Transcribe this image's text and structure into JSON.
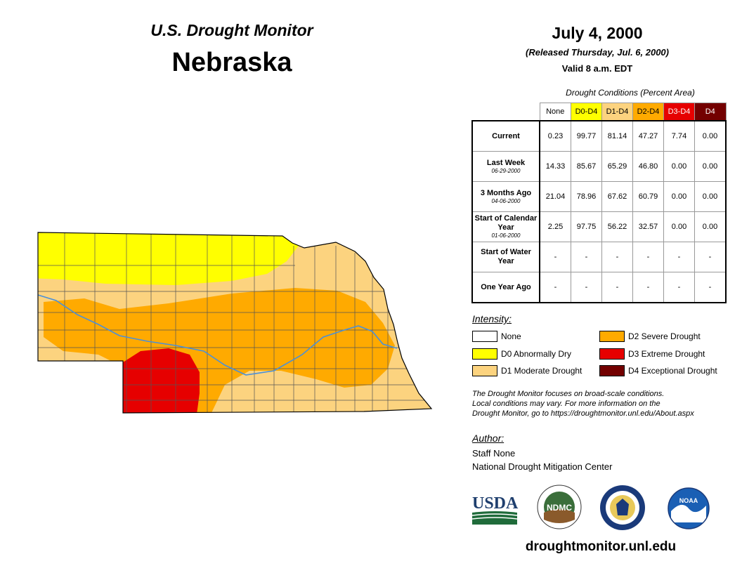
{
  "header": {
    "subtitle": "U.S. Drought Monitor",
    "state": "Nebraska",
    "date": "July 4, 2000",
    "released": "(Released Thursday, Jul. 6, 2000)",
    "valid": "Valid 8 a.m. EDT"
  },
  "table": {
    "caption": "Drought Conditions (Percent Area)",
    "columns": [
      {
        "label": "None",
        "color": "#ffffff",
        "text_color": "#000000"
      },
      {
        "label": "D0-D4",
        "color": "#ffff00",
        "text_color": "#000000"
      },
      {
        "label": "D1-D4",
        "color": "#fcd37f",
        "text_color": "#000000"
      },
      {
        "label": "D2-D4",
        "color": "#ffaa00",
        "text_color": "#000000"
      },
      {
        "label": "D3-D4",
        "color": "#e60000",
        "text_color": "#ffffff"
      },
      {
        "label": "D4",
        "color": "#730000",
        "text_color": "#ffffff"
      }
    ],
    "rows": [
      {
        "label": "Current",
        "date": "",
        "values": [
          "0.23",
          "99.77",
          "81.14",
          "47.27",
          "7.74",
          "0.00"
        ]
      },
      {
        "label": "Last Week",
        "date": "06-29-2000",
        "values": [
          "14.33",
          "85.67",
          "65.29",
          "46.80",
          "0.00",
          "0.00"
        ]
      },
      {
        "label": "3 Months Ago",
        "date": "04-06-2000",
        "values": [
          "21.04",
          "78.96",
          "67.62",
          "60.79",
          "0.00",
          "0.00"
        ]
      },
      {
        "label": "Start of Calendar Year",
        "date": "01-06-2000",
        "values": [
          "2.25",
          "97.75",
          "56.22",
          "32.57",
          "0.00",
          "0.00"
        ]
      },
      {
        "label": "Start of Water Year",
        "date": "",
        "values": [
          "-",
          "-",
          "-",
          "-",
          "-",
          "-"
        ]
      },
      {
        "label": "One Year Ago",
        "date": "",
        "values": [
          "-",
          "-",
          "-",
          "-",
          "-",
          "-"
        ]
      }
    ]
  },
  "legend": {
    "title": "Intensity:",
    "items": [
      {
        "label": "None",
        "color": "#ffffff"
      },
      {
        "label": "D0 Abnormally Dry",
        "color": "#ffff00"
      },
      {
        "label": "D1 Moderate Drought",
        "color": "#fcd37f"
      },
      {
        "label": "D2 Severe Drought",
        "color": "#ffaa00"
      },
      {
        "label": "D3 Extreme Drought",
        "color": "#e60000"
      },
      {
        "label": "D4 Exceptional Drought",
        "color": "#730000"
      }
    ]
  },
  "note": {
    "line1": "The Drought Monitor focuses on broad-scale conditions.",
    "line2": "Local conditions may vary. For more information on the",
    "line3": "Drought Monitor, go to https://droughtmonitor.unl.edu/About.aspx"
  },
  "author": {
    "title": "Author:",
    "name": "Staff None",
    "org": "National Drought Mitigation Center"
  },
  "logos": {
    "usda": "USDA",
    "ndmc": "NDMC",
    "noaa": "NOAA"
  },
  "footer_url": "droughtmonitor.unl.edu"
}
